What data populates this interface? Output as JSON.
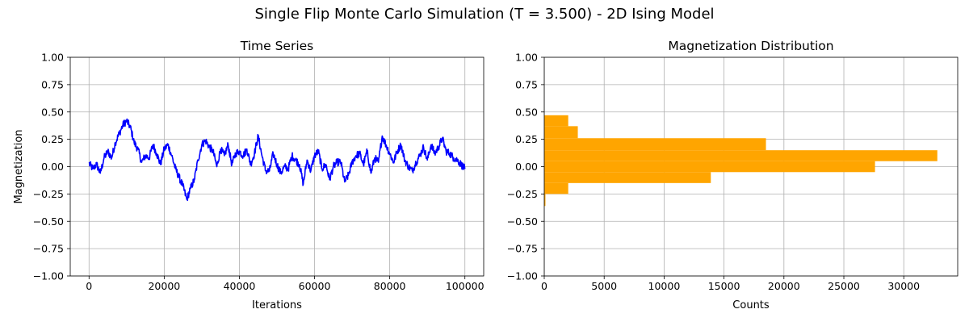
{
  "figure": {
    "suptitle": "Single Flip Monte Carlo Simulation (T = 3.500) - 2D Ising Model"
  },
  "colors": {
    "series_line": "#0000ff",
    "histogram": "#ffa500",
    "grid": "#b0b0b0",
    "axis": "#000000"
  },
  "chart_data": [
    {
      "type": "line",
      "title": "Time Series",
      "xlabel": "Iterations",
      "ylabel": "Magnetization",
      "xlim": [
        -5000,
        105000
      ],
      "ylim": [
        -1.0,
        1.0
      ],
      "xticks": [
        0,
        20000,
        40000,
        60000,
        80000,
        100000
      ],
      "yticks": [
        -1.0,
        -0.75,
        -0.5,
        -0.25,
        0.0,
        0.25,
        0.5,
        0.75,
        1.0
      ],
      "grid": true,
      "series": [
        {
          "name": "magnetization",
          "x": [
            0,
            1000,
            2000,
            3000,
            4000,
            5000,
            6000,
            7000,
            8000,
            9000,
            10000,
            11000,
            12000,
            13000,
            14000,
            15000,
            16000,
            17000,
            18000,
            19000,
            20000,
            21000,
            22000,
            23000,
            24000,
            25000,
            26000,
            27000,
            28000,
            29000,
            30000,
            31000,
            32000,
            33000,
            34000,
            35000,
            36000,
            37000,
            38000,
            39000,
            40000,
            41000,
            42000,
            43000,
            44000,
            45000,
            46000,
            47000,
            48000,
            49000,
            50000,
            51000,
            52000,
            53000,
            54000,
            55000,
            56000,
            57000,
            58000,
            59000,
            60000,
            61000,
            62000,
            63000,
            64000,
            65000,
            66000,
            67000,
            68000,
            69000,
            70000,
            71000,
            72000,
            73000,
            74000,
            75000,
            76000,
            77000,
            78000,
            79000,
            80000,
            81000,
            82000,
            83000,
            84000,
            85000,
            86000,
            87000,
            88000,
            89000,
            90000,
            91000,
            92000,
            93000,
            94000,
            95000,
            96000,
            97000,
            98000,
            99000,
            100000
          ],
          "y": [
            0.03,
            -0.02,
            0.02,
            -0.06,
            0.08,
            0.14,
            0.08,
            0.22,
            0.3,
            0.38,
            0.42,
            0.36,
            0.22,
            0.16,
            0.04,
            0.1,
            0.08,
            0.2,
            0.12,
            0.02,
            0.16,
            0.2,
            0.1,
            -0.02,
            -0.1,
            -0.18,
            -0.3,
            -0.2,
            -0.12,
            0.06,
            0.2,
            0.24,
            0.18,
            0.14,
            0.0,
            0.16,
            0.1,
            0.2,
            0.02,
            0.12,
            0.14,
            0.1,
            0.16,
            0.02,
            0.12,
            0.28,
            0.1,
            -0.04,
            -0.04,
            0.12,
            0.02,
            -0.06,
            0.0,
            -0.02,
            0.1,
            0.06,
            0.02,
            -0.16,
            0.06,
            -0.04,
            0.1,
            0.14,
            -0.02,
            0.02,
            -0.12,
            0.0,
            0.04,
            0.04,
            -0.14,
            -0.08,
            0.04,
            0.1,
            0.12,
            0.02,
            0.14,
            -0.06,
            0.08,
            0.04,
            0.28,
            0.2,
            0.12,
            0.04,
            0.14,
            0.2,
            0.06,
            0.0,
            -0.04,
            0.04,
            0.1,
            0.18,
            0.06,
            0.2,
            0.12,
            0.18,
            0.26,
            0.14,
            0.12,
            0.08,
            0.06,
            0.02,
            -0.02
          ]
        }
      ]
    },
    {
      "type": "bar",
      "orientation": "horizontal",
      "title": "Magnetization Distribution",
      "xlabel": "Counts",
      "ylabel": "",
      "xlim": [
        0,
        34500
      ],
      "ylim": [
        -1.0,
        1.0
      ],
      "xticks": [
        0,
        5000,
        10000,
        15000,
        20000,
        25000,
        30000
      ],
      "yticks": [
        -1.0,
        -0.75,
        -0.5,
        -0.25,
        0.0,
        0.25,
        0.5,
        0.75,
        1.0
      ],
      "grid": true,
      "bins": [
        {
          "y0": -0.36,
          "y1": -0.25,
          "count": 100
        },
        {
          "y0": -0.25,
          "y1": -0.15,
          "count": 2000
        },
        {
          "y0": -0.15,
          "y1": -0.05,
          "count": 13900
        },
        {
          "y0": -0.05,
          "y1": 0.05,
          "count": 27600
        },
        {
          "y0": 0.05,
          "y1": 0.15,
          "count": 32800
        },
        {
          "y0": 0.15,
          "y1": 0.26,
          "count": 18500
        },
        {
          "y0": 0.26,
          "y1": 0.37,
          "count": 2800
        },
        {
          "y0": 0.37,
          "y1": 0.47,
          "count": 2000
        }
      ]
    }
  ]
}
